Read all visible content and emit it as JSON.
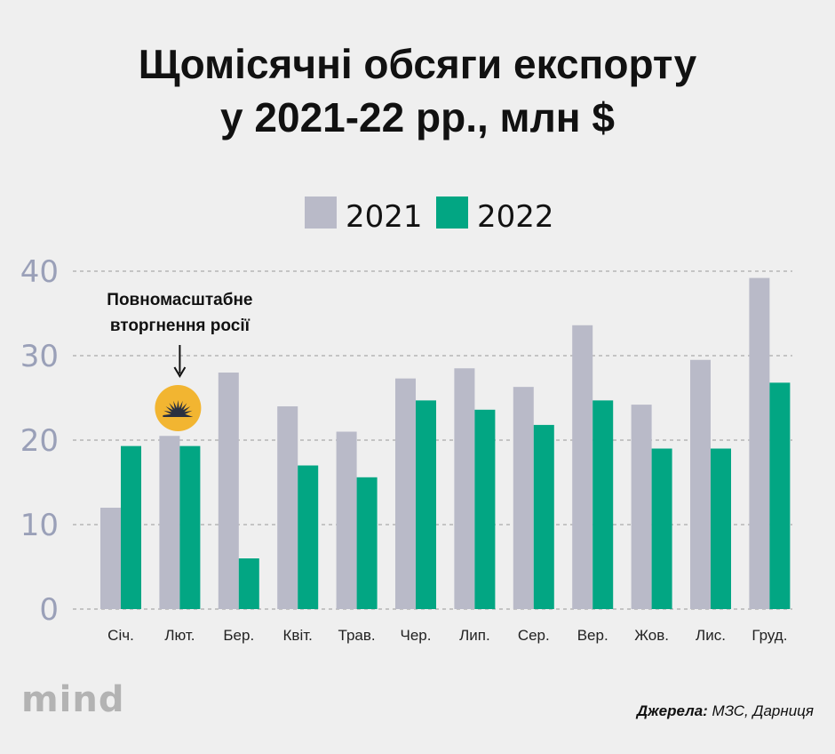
{
  "title_lines": [
    "Щомісячні обсяги експорту",
    "у 2021-22 рр., млн $"
  ],
  "logo": "mind",
  "source": {
    "label": "Джерела:",
    "text": " МЗС, Дарниця"
  },
  "annotation": {
    "line1": "Повномасштабне",
    "line2": "вторгнення росії",
    "category_index": 1
  },
  "colors": {
    "s2021": "#b9bac8",
    "s2022": "#02a683",
    "grid": "#9a9a9a",
    "badge": "#f2b531"
  },
  "chart_data": {
    "type": "bar",
    "title": "Щомісячні обсяги експорту у 2021-22 рр., млн $",
    "categories": [
      "Січ.",
      "Лют.",
      "Бер.",
      "Квіт.",
      "Трав.",
      "Чер.",
      "Лип.",
      "Сер.",
      "Вер.",
      "Жов.",
      "Лис.",
      "Груд."
    ],
    "series": [
      {
        "name": "2021",
        "values": [
          12,
          20.5,
          28,
          24,
          21,
          27.3,
          28.5,
          26.3,
          33.6,
          24.2,
          29.5,
          39.2
        ]
      },
      {
        "name": "2022",
        "values": [
          19.3,
          19.3,
          6,
          17,
          15.6,
          24.7,
          23.6,
          21.8,
          24.7,
          19,
          19,
          26.8
        ]
      }
    ],
    "ylim": [
      0,
      40
    ],
    "yticks": [
      0,
      10,
      20,
      30,
      40
    ],
    "grid": true,
    "legend": "top-center",
    "xlabel": "",
    "ylabel": ""
  }
}
